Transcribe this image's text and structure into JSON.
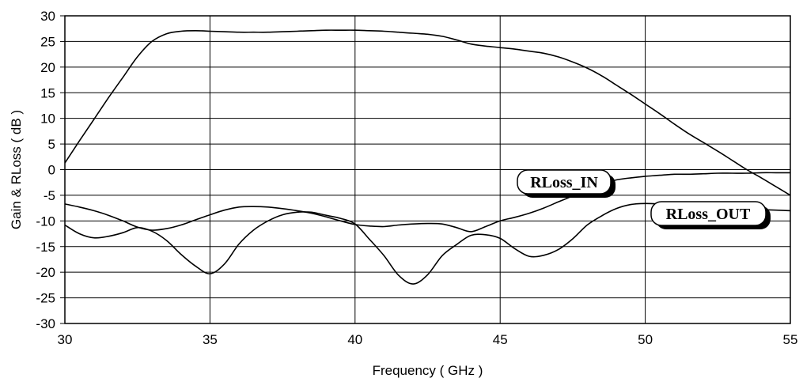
{
  "chart_data": {
    "type": "line",
    "title": "",
    "xlabel": "Frequency ( GHz )",
    "ylabel": "Gain & RLoss ( dB )",
    "xlim": [
      30,
      55
    ],
    "ylim": [
      -30,
      30
    ],
    "x_ticks": [
      "30",
      "35",
      "40",
      "45",
      "50",
      "55"
    ],
    "y_ticks": [
      "30",
      "25",
      "20",
      "15",
      "10",
      "5",
      "0",
      "-5",
      "-10",
      "-15",
      "-20",
      "-25",
      "-30"
    ],
    "grid": true,
    "series": [
      {
        "name": "",
        "x": [
          30,
          30.5,
          31,
          31.5,
          32,
          32.5,
          33,
          33.5,
          34,
          34.5,
          35,
          35.5,
          36,
          36.5,
          37,
          37.5,
          38,
          38.5,
          39,
          39.5,
          40,
          40.5,
          41,
          41.5,
          42,
          42.5,
          43,
          43.5,
          44,
          44.5,
          45,
          45.5,
          46,
          46.5,
          47,
          47.5,
          48,
          48.5,
          49,
          49.5,
          50,
          50.5,
          51,
          51.5,
          52,
          52.5,
          53,
          53.5,
          54,
          54.5,
          55
        ],
        "y": [
          1.3,
          5.6,
          9.8,
          14,
          18,
          22,
          25,
          26.5,
          27,
          27.1,
          27,
          26.9,
          26.8,
          26.8,
          26.8,
          26.9,
          27,
          27.1,
          27.2,
          27.2,
          27.2,
          27.1,
          27,
          26.8,
          26.6,
          26.4,
          26,
          25.3,
          24.5,
          24.1,
          23.8,
          23.5,
          23.1,
          22.7,
          22,
          21,
          19.8,
          18.3,
          16.5,
          14.7,
          12.8,
          10.9,
          8.9,
          7,
          5.3,
          3.6,
          1.8,
          0,
          -1.6,
          -3.3,
          -5
        ]
      },
      {
        "name": "RLoss_IN",
        "x": [
          30,
          30.5,
          31,
          31.5,
          32,
          32.5,
          33,
          33.5,
          34,
          34.5,
          35,
          35.5,
          36,
          36.5,
          37,
          37.5,
          38,
          38.5,
          39,
          39.5,
          40,
          40.5,
          41,
          41.5,
          42,
          42.5,
          43,
          43.5,
          44,
          44.5,
          45,
          45.5,
          46,
          46.5,
          47,
          47.5,
          48,
          48.5,
          49,
          49.5,
          50,
          50.5,
          51,
          51.5,
          52,
          52.5,
          53,
          53.5,
          54,
          54.5,
          55
        ],
        "y": [
          -6.7,
          -7.3,
          -8,
          -8.9,
          -10,
          -11.2,
          -11.8,
          -11.5,
          -10.8,
          -9.8,
          -8.8,
          -7.9,
          -7.3,
          -7.2,
          -7.3,
          -7.6,
          -8,
          -8.5,
          -9.2,
          -10,
          -10.7,
          -11,
          -11.1,
          -10.8,
          -10.6,
          -10.5,
          -10.6,
          -11.3,
          -12.1,
          -11.1,
          -10,
          -9.3,
          -8.5,
          -7.5,
          -6.3,
          -5.1,
          -3.8,
          -2.8,
          -2,
          -1.6,
          -1.3,
          -1.1,
          -0.9,
          -0.9,
          -0.8,
          -0.7,
          -0.7,
          -0.7,
          -0.6,
          -0.6,
          -0.6
        ]
      },
      {
        "name": "RLoss_OUT",
        "x": [
          30,
          30.5,
          31,
          31.5,
          32,
          32.5,
          33,
          33.5,
          34,
          34.5,
          35,
          35.5,
          36,
          36.5,
          37,
          37.5,
          38,
          38.5,
          39,
          39.5,
          40,
          40.5,
          41,
          41.5,
          42,
          42.5,
          43,
          43.5,
          44,
          44.5,
          45,
          45.5,
          46,
          46.5,
          47,
          47.5,
          48,
          48.5,
          49,
          49.5,
          50,
          50.5,
          51,
          51.5,
          52,
          52.5,
          53,
          53.5,
          54,
          54.5,
          55
        ],
        "y": [
          -10.8,
          -12.5,
          -13.3,
          -13,
          -12.3,
          -11.3,
          -12,
          -13.8,
          -16.5,
          -18.8,
          -20.3,
          -18.4,
          -14.5,
          -11.8,
          -10,
          -8.8,
          -8.3,
          -8.3,
          -8.9,
          -9.5,
          -10.6,
          -13.6,
          -16.8,
          -20.6,
          -22.3,
          -20.5,
          -16.8,
          -14.6,
          -12.8,
          -12.7,
          -13.4,
          -15.4,
          -16.9,
          -16.7,
          -15.6,
          -13.5,
          -10.8,
          -9,
          -7.6,
          -6.8,
          -6.6,
          -6.7,
          -6.9,
          -7.1,
          -7.3,
          -7.5,
          -7.6,
          -7.7,
          -7.8,
          -7.9,
          -8
        ]
      }
    ],
    "annotations": [
      {
        "text": "RLoss_IN"
      },
      {
        "text": "RLoss_OUT"
      }
    ]
  }
}
